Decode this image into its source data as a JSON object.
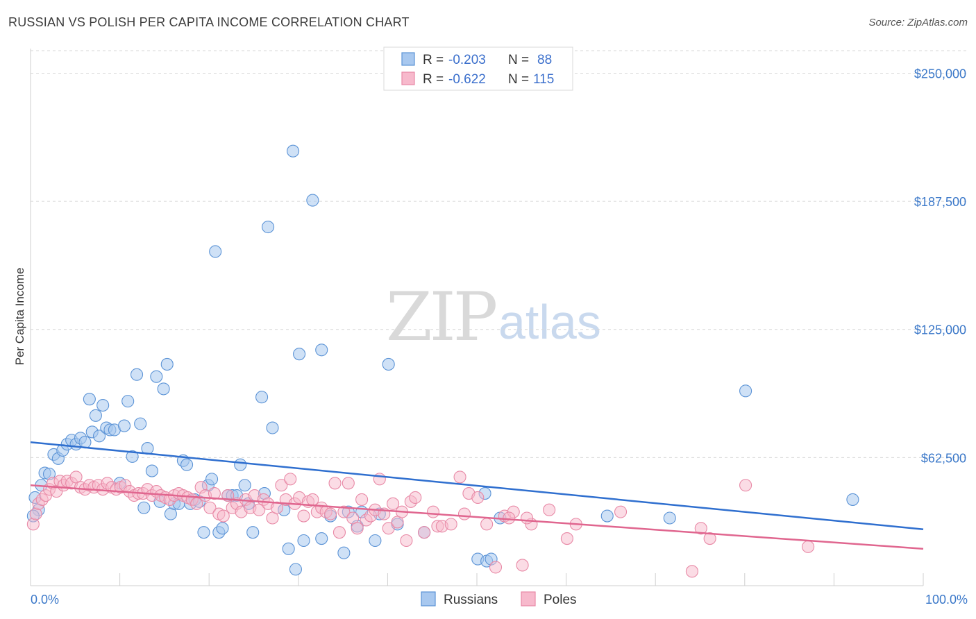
{
  "title": "RUSSIAN VS POLISH PER CAPITA INCOME CORRELATION CHART",
  "source": "Source: ZipAtlas.com",
  "watermark": {
    "zip": "ZIP",
    "atlas": "atlas"
  },
  "legend": {
    "rows": [
      {
        "r_label": "R =",
        "r_value": "-0.203",
        "n_label": "N =",
        "n_value": "88"
      },
      {
        "r_label": "R =",
        "r_value": "-0.622",
        "n_label": "N =",
        "n_value": "115"
      }
    ]
  },
  "colors": {
    "russians_fill": "#a8c8ef",
    "russians_stroke": "#5b93d6",
    "russians_line": "#2f6fcf",
    "poles_fill": "#f7b9cc",
    "poles_stroke": "#e889a6",
    "poles_line": "#e0668f"
  },
  "chart_data": {
    "type": "scatter",
    "title": "RUSSIAN VS POLISH PER CAPITA INCOME CORRELATION CHART",
    "xlabel": "",
    "ylabel": "Per Capita Income",
    "xlim": [
      0,
      100
    ],
    "ylim": [
      0,
      262000
    ],
    "x_tick_labels": [
      "0.0%",
      "100.0%"
    ],
    "y_ticks": [
      62500,
      125000,
      187500,
      250000
    ],
    "y_tick_labels": [
      "$62,500",
      "$125,000",
      "$187,500",
      "$250,000"
    ],
    "grid": true,
    "legend_position": "top-center",
    "series": [
      {
        "name": "Russians",
        "trend": {
          "x": [
            0,
            100
          ],
          "y": [
            70000,
            27500
          ]
        },
        "points": [
          [
            0.5,
            43000
          ],
          [
            0.9,
            37000
          ],
          [
            1.2,
            49000
          ],
          [
            1.6,
            55000
          ],
          [
            2.1,
            54500
          ],
          [
            2.6,
            64000
          ],
          [
            3.1,
            62000
          ],
          [
            3.6,
            66000
          ],
          [
            4.1,
            69000
          ],
          [
            4.6,
            71000
          ],
          [
            5.1,
            69000
          ],
          [
            5.6,
            72000
          ],
          [
            6.1,
            70000
          ],
          [
            6.6,
            91000
          ],
          [
            6.9,
            75000
          ],
          [
            7.3,
            83000
          ],
          [
            7.7,
            73000
          ],
          [
            8.1,
            88000
          ],
          [
            8.5,
            77000
          ],
          [
            8.9,
            76000
          ],
          [
            9.4,
            76000
          ],
          [
            10.0,
            50000
          ],
          [
            10.5,
            78000
          ],
          [
            10.9,
            90000
          ],
          [
            11.4,
            63000
          ],
          [
            11.9,
            103000
          ],
          [
            12.3,
            79000
          ],
          [
            12.7,
            38000
          ],
          [
            13.1,
            67000
          ],
          [
            13.6,
            56000
          ],
          [
            14.1,
            102000
          ],
          [
            14.5,
            41000
          ],
          [
            14.9,
            96000
          ],
          [
            15.3,
            108000
          ],
          [
            15.7,
            35000
          ],
          [
            16.1,
            40000
          ],
          [
            16.6,
            40000
          ],
          [
            17.1,
            61000
          ],
          [
            17.5,
            59000
          ],
          [
            17.9,
            40000
          ],
          [
            18.4,
            42000
          ],
          [
            18.9,
            41000
          ],
          [
            19.4,
            26000
          ],
          [
            19.9,
            49000
          ],
          [
            20.3,
            52000
          ],
          [
            20.7,
            163000
          ],
          [
            21.1,
            26000
          ],
          [
            21.5,
            28000
          ],
          [
            22.1,
            44000
          ],
          [
            22.6,
            44000
          ],
          [
            23.1,
            44000
          ],
          [
            23.5,
            59000
          ],
          [
            24.0,
            49000
          ],
          [
            24.4,
            40000
          ],
          [
            24.9,
            26000
          ],
          [
            25.9,
            92000
          ],
          [
            26.2,
            45000
          ],
          [
            26.6,
            175000
          ],
          [
            27.1,
            77000
          ],
          [
            28.4,
            37000
          ],
          [
            28.9,
            18000
          ],
          [
            29.4,
            212000
          ],
          [
            29.7,
            8000
          ],
          [
            30.1,
            113000
          ],
          [
            30.6,
            22000
          ],
          [
            31.6,
            188000
          ],
          [
            32.6,
            115000
          ],
          [
            32.6,
            23000
          ],
          [
            33.6,
            34000
          ],
          [
            35.1,
            16000
          ],
          [
            35.6,
            36000
          ],
          [
            36.6,
            29000
          ],
          [
            37.1,
            36000
          ],
          [
            38.6,
            22000
          ],
          [
            39.1,
            35000
          ],
          [
            40.1,
            108000
          ],
          [
            41.1,
            30000
          ],
          [
            44.1,
            26000
          ],
          [
            50.1,
            13000
          ],
          [
            50.9,
            45000
          ],
          [
            51.1,
            12000
          ],
          [
            51.6,
            13000
          ],
          [
            52.6,
            33000
          ],
          [
            64.6,
            34000
          ],
          [
            71.6,
            33000
          ],
          [
            80.1,
            95000
          ],
          [
            92.1,
            42000
          ],
          [
            0.3,
            34000
          ]
        ]
      },
      {
        "name": "Poles",
        "trend": {
          "x": [
            0,
            100
          ],
          "y": [
            49000,
            18000
          ]
        },
        "points": [
          [
            0.3,
            30000
          ],
          [
            0.6,
            35000
          ],
          [
            0.9,
            40000
          ],
          [
            1.3,
            42000
          ],
          [
            1.7,
            44000
          ],
          [
            2.1,
            47000
          ],
          [
            2.5,
            50000
          ],
          [
            2.9,
            46000
          ],
          [
            3.3,
            51000
          ],
          [
            3.7,
            49000
          ],
          [
            4.1,
            51000
          ],
          [
            4.6,
            50000
          ],
          [
            5.1,
            53000
          ],
          [
            5.6,
            48000
          ],
          [
            6.1,
            47000
          ],
          [
            6.6,
            49000
          ],
          [
            7.1,
            48000
          ],
          [
            7.6,
            49000
          ],
          [
            8.1,
            47000
          ],
          [
            8.6,
            50000
          ],
          [
            9.1,
            48000
          ],
          [
            9.6,
            47000
          ],
          [
            10.1,
            48000
          ],
          [
            10.6,
            49000
          ],
          [
            11.1,
            46000
          ],
          [
            11.6,
            44000
          ],
          [
            12.1,
            45000
          ],
          [
            12.6,
            45000
          ],
          [
            13.1,
            47000
          ],
          [
            13.6,
            44000
          ],
          [
            14.1,
            46000
          ],
          [
            14.6,
            44000
          ],
          [
            15.1,
            43000
          ],
          [
            15.6,
            42000
          ],
          [
            16.1,
            44000
          ],
          [
            16.6,
            45000
          ],
          [
            17.1,
            44000
          ],
          [
            17.6,
            43000
          ],
          [
            18.1,
            42000
          ],
          [
            18.6,
            40000
          ],
          [
            19.1,
            48000
          ],
          [
            19.6,
            44000
          ],
          [
            20.1,
            38000
          ],
          [
            20.6,
            45000
          ],
          [
            21.1,
            35000
          ],
          [
            21.6,
            34000
          ],
          [
            22.1,
            44000
          ],
          [
            22.6,
            38000
          ],
          [
            23.1,
            40000
          ],
          [
            23.6,
            36000
          ],
          [
            24.1,
            42000
          ],
          [
            24.6,
            38000
          ],
          [
            25.1,
            44000
          ],
          [
            25.6,
            37000
          ],
          [
            26.1,
            42000
          ],
          [
            26.6,
            40000
          ],
          [
            27.1,
            33000
          ],
          [
            27.6,
            38000
          ],
          [
            28.1,
            49000
          ],
          [
            28.6,
            42000
          ],
          [
            29.1,
            52000
          ],
          [
            29.6,
            40000
          ],
          [
            30.1,
            43000
          ],
          [
            30.6,
            34000
          ],
          [
            31.1,
            41000
          ],
          [
            31.6,
            42000
          ],
          [
            32.1,
            36000
          ],
          [
            32.6,
            38000
          ],
          [
            33.1,
            36000
          ],
          [
            33.6,
            35000
          ],
          [
            34.1,
            50000
          ],
          [
            34.6,
            26000
          ],
          [
            35.1,
            36000
          ],
          [
            35.6,
            50000
          ],
          [
            36.1,
            33000
          ],
          [
            36.6,
            28000
          ],
          [
            37.1,
            42000
          ],
          [
            37.6,
            32000
          ],
          [
            38.1,
            34000
          ],
          [
            38.6,
            37000
          ],
          [
            39.1,
            52000
          ],
          [
            39.6,
            35000
          ],
          [
            40.1,
            28000
          ],
          [
            40.6,
            40000
          ],
          [
            41.1,
            31000
          ],
          [
            41.6,
            36000
          ],
          [
            42.1,
            22000
          ],
          [
            42.6,
            41000
          ],
          [
            43.1,
            43000
          ],
          [
            44.1,
            26000
          ],
          [
            45.1,
            36000
          ],
          [
            45.6,
            29000
          ],
          [
            46.1,
            29000
          ],
          [
            47.1,
            30000
          ],
          [
            48.1,
            53000
          ],
          [
            48.6,
            35000
          ],
          [
            49.1,
            45000
          ],
          [
            50.1,
            43000
          ],
          [
            51.1,
            30000
          ],
          [
            52.1,
            9000
          ],
          [
            53.1,
            34000
          ],
          [
            54.1,
            36000
          ],
          [
            55.1,
            10000
          ],
          [
            56.1,
            30000
          ],
          [
            58.1,
            37000
          ],
          [
            60.1,
            23000
          ],
          [
            61.1,
            30000
          ],
          [
            66.1,
            36000
          ],
          [
            75.1,
            28000
          ],
          [
            76.1,
            23000
          ],
          [
            80.1,
            49000
          ],
          [
            87.1,
            19000
          ],
          [
            74.1,
            7000
          ],
          [
            53.6,
            33000
          ],
          [
            55.6,
            33000
          ]
        ]
      }
    ],
    "bottom_legend": [
      "Russians",
      "Poles"
    ]
  }
}
